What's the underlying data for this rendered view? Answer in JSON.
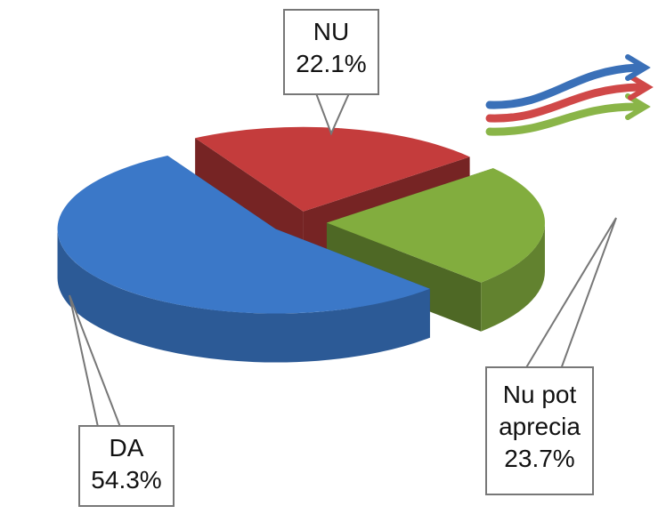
{
  "chart_data": {
    "type": "pie3d",
    "categories": [
      "DA",
      "NU",
      "Nu pot aprecia"
    ],
    "values": [
      54.3,
      22.1,
      23.7
    ],
    "value_labels": [
      "54.3%",
      "22.1%",
      "23.7%"
    ],
    "colors": [
      "#3b78c8",
      "#c43c3c",
      "#82ad3e"
    ]
  }
}
